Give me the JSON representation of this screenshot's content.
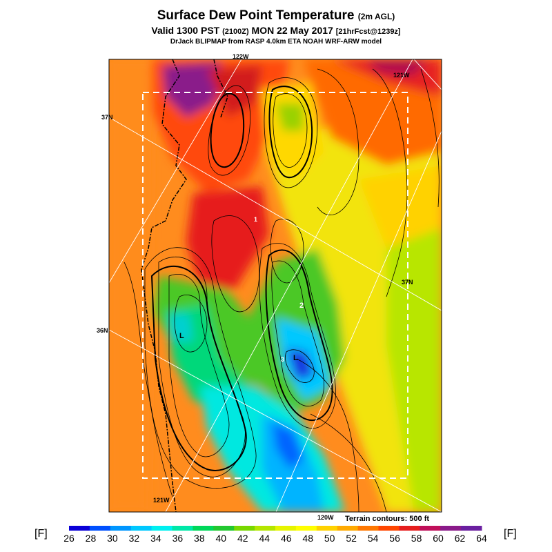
{
  "header": {
    "title": "Surface Dew Point Temperature",
    "title_suffix": "(2m AGL)",
    "valid_line": "Valid 1300 PST",
    "valid_zulu": "(2100Z)",
    "valid_date": "MON 22 May 2017",
    "forecast_info": "[21hrFcst@1239z]",
    "credit": "DrJack BLIPMAP from RASP 4.0km ETA NOAH WRF-ARW model"
  },
  "map": {
    "lon_labels": [
      "122W",
      "121W",
      "121W",
      "120W"
    ],
    "lat_labels": [
      "37N",
      "37N",
      "36N"
    ],
    "markers": [
      "1",
      "2",
      "3",
      "L",
      "L"
    ],
    "terrain_note": "Terrain contours: 500 ft"
  },
  "colorbar": {
    "unit_left": "[F]",
    "unit_right": "[F]",
    "ticks": [
      "26",
      "28",
      "30",
      "32",
      "34",
      "36",
      "38",
      "40",
      "42",
      "44",
      "46",
      "48",
      "50",
      "52",
      "54",
      "56",
      "58",
      "60",
      "62",
      "64"
    ],
    "colors": [
      "#0a00d8",
      "#0050ff",
      "#0096ff",
      "#00c8ff",
      "#00f0f0",
      "#00e8a8",
      "#00d85a",
      "#22c830",
      "#78d800",
      "#b4e600",
      "#e6f500",
      "#ffff00",
      "#ffd200",
      "#ffaa00",
      "#ff7800",
      "#ff4600",
      "#e61e1e",
      "#c0105a",
      "#8a1a8a",
      "#6a1fa0"
    ]
  }
}
